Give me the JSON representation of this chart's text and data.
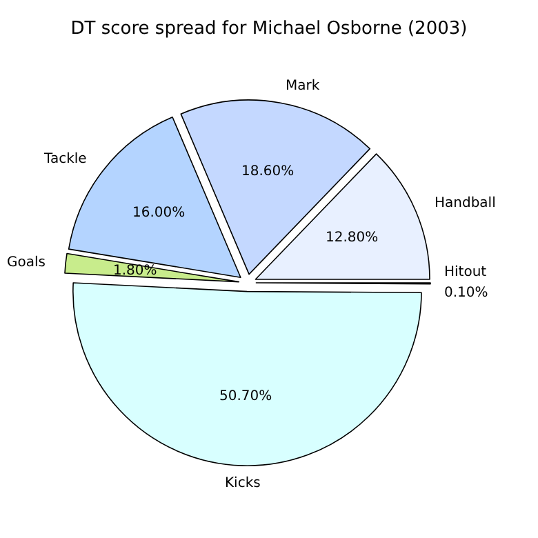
{
  "chart_data": {
    "type": "pie",
    "title": "DT score spread for Michael Osborne (2003)",
    "categories": [
      "Hitout",
      "Handball",
      "Mark",
      "Tackle",
      "Goals",
      "Kicks"
    ],
    "values": [
      0.1,
      12.8,
      18.6,
      16.0,
      1.8,
      50.7
    ],
    "value_labels": [
      "0.10%",
      "12.80%",
      "18.60%",
      "16.00%",
      "1.80%",
      "50.70%"
    ],
    "colors": [
      "#e6e6e6",
      "#e8f0ff",
      "#c4d8ff",
      "#b4d4ff",
      "#c8ec8c",
      "#d8ffff"
    ],
    "legend": false
  }
}
